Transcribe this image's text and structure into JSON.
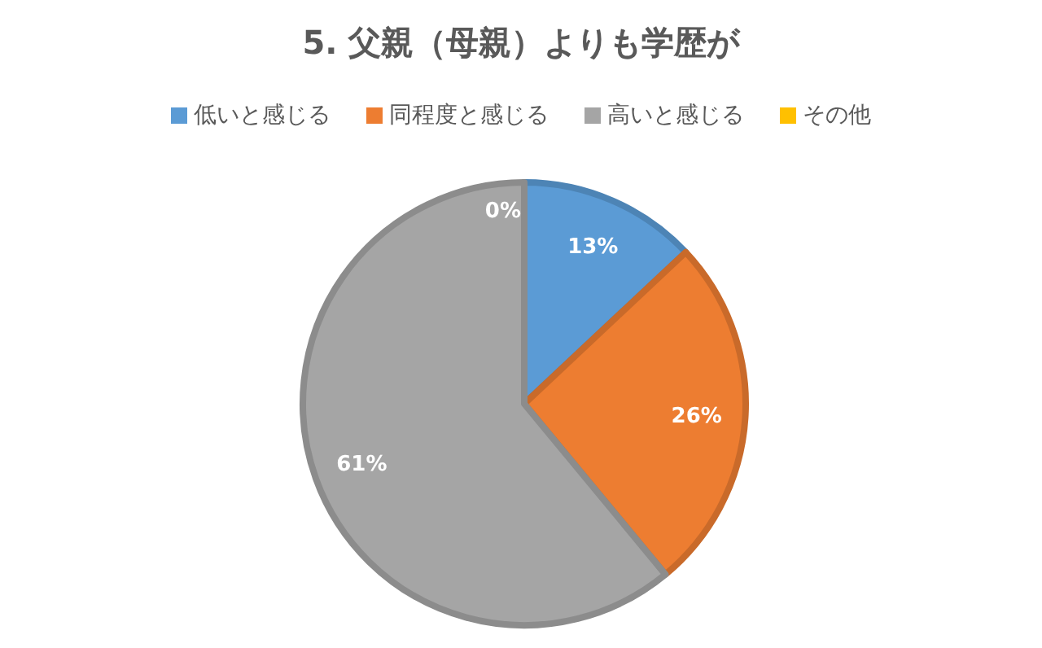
{
  "chart_data": {
    "type": "pie",
    "title": "5. 父親（母親）よりも学歴が",
    "categories": [
      "低いと感じる",
      "同程度と感じる",
      "高いと感じる",
      "その他"
    ],
    "values": [
      13,
      26,
      61,
      0
    ],
    "colors": [
      "#5b9bd5",
      "#ed7d31",
      "#a5a5a5",
      "#ffc000"
    ],
    "value_labels": [
      "13%",
      "26%",
      "61%",
      "0%"
    ],
    "legend": "top"
  }
}
